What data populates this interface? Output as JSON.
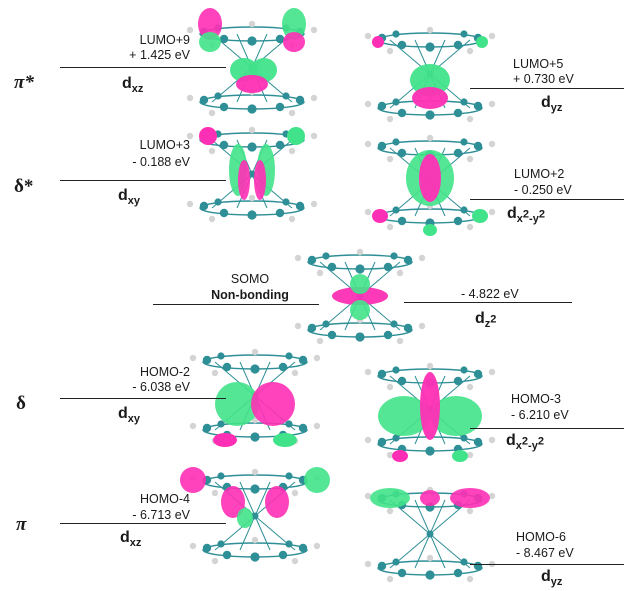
{
  "colors": {
    "positive_lobe": "#ff2fb5",
    "negative_lobe": "#41e38a",
    "atom_c": "#2e8f96",
    "atom_h": "#d4d4d4",
    "line": "#222222"
  },
  "symmetry": {
    "pi_star": "π*",
    "delta_star": "δ*",
    "delta": "δ",
    "pi": "π"
  },
  "levels": {
    "lumo9": {
      "label": "LUMO+9",
      "energy": "+ 1.425 eV",
      "orbital": "d",
      "sub": "xz"
    },
    "lumo5": {
      "label": "LUMO+5",
      "energy": "+ 0.730 eV",
      "orbital": "d",
      "sub": "yz"
    },
    "lumo3": {
      "label": "LUMO+3",
      "energy": "- 0.188 eV",
      "orbital": "d",
      "sub": "xy"
    },
    "lumo2": {
      "label": "LUMO+2",
      "energy": "- 0.250 eV",
      "orbital": "d",
      "sub_a": "x",
      "sup_a": "2",
      "sub_b": "-y",
      "sup_b": "2"
    },
    "somo": {
      "label": "SOMO",
      "type": "Non-bonding",
      "energy": "- 4.822 eV",
      "orbital": "d",
      "sub": "z",
      "sup": "2"
    },
    "homo2": {
      "label": "HOMO-2",
      "energy": "- 6.038 eV",
      "orbital": "d",
      "sub": "xy"
    },
    "homo3": {
      "label": "HOMO-3",
      "energy": "- 6.210 eV",
      "orbital": "d",
      "sub_a": "x",
      "sup_a": "2",
      "sub_b": "-y",
      "sup_b": "2"
    },
    "homo4": {
      "label": "HOMO-4",
      "energy": "- 6.713 eV",
      "orbital": "d",
      "sub": "xz"
    },
    "homo6": {
      "label": "HOMO-6",
      "energy": "- 8.467 eV",
      "orbital": "d",
      "sub": "yz"
    }
  }
}
